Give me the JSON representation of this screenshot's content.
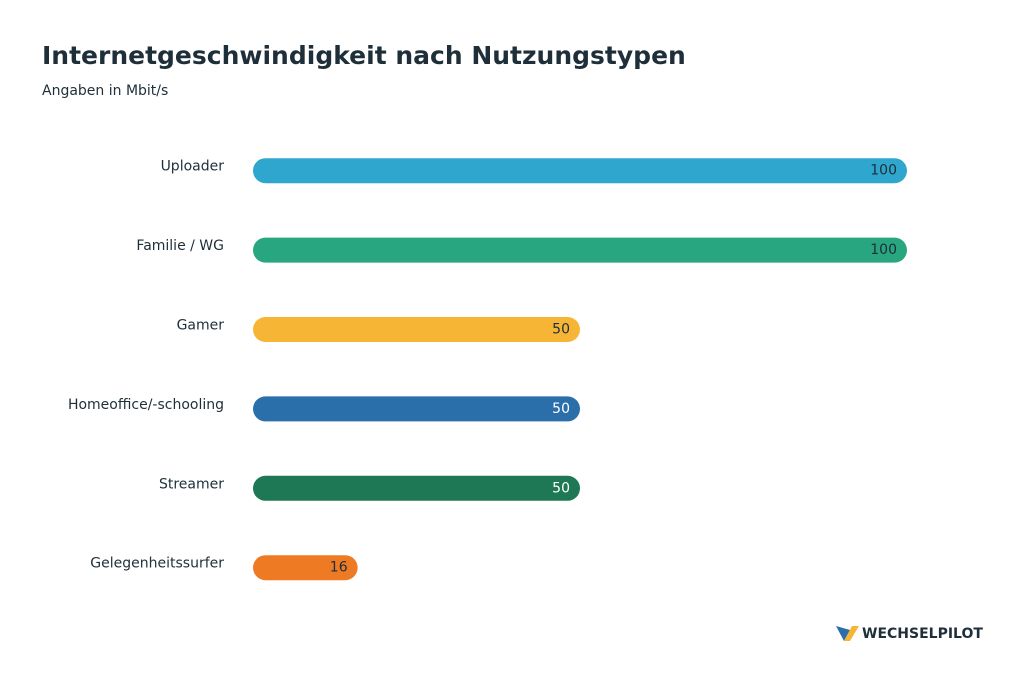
{
  "chart_data": {
    "type": "hbar",
    "title": "Internetgeschwindigkeit nach Nutzungstypen",
    "subtitle": "Angaben in Mbit/s",
    "categories": [
      "Uploader",
      "Familie / WG",
      "Gamer",
      "Homeoffice/-schooling",
      "Streamer",
      "Gelegenheitssurfer"
    ],
    "values": [
      100,
      100,
      50,
      50,
      50,
      16
    ],
    "colors": [
      "#2ea6cd",
      "#27a680",
      "#f7b535",
      "#2a6eaa",
      "#1e7856",
      "#ef7a24"
    ],
    "xlim": [
      0,
      100
    ]
  },
  "brand": "WECHSELPILOT"
}
